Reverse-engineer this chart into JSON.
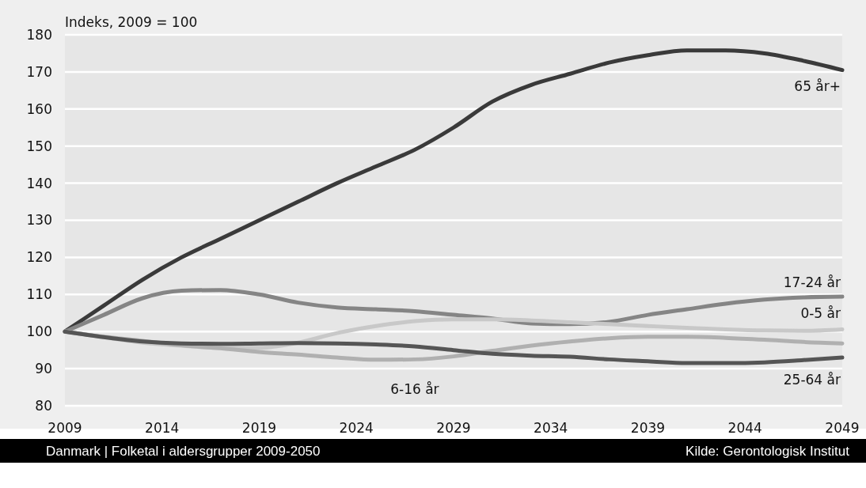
{
  "chart_data": {
    "type": "line",
    "ylabel": "Indeks, 2009 = 100",
    "x": [
      2009,
      2011,
      2013,
      2015,
      2017,
      2019,
      2021,
      2023,
      2025,
      2027,
      2029,
      2031,
      2033,
      2035,
      2037,
      2039,
      2041,
      2043,
      2045,
      2047,
      2049
    ],
    "xlim": [
      2009,
      2049
    ],
    "xticks": [
      2009,
      2014,
      2019,
      2024,
      2029,
      2034,
      2039,
      2044,
      2049
    ],
    "ylim": [
      80,
      180
    ],
    "yticks": [
      80,
      90,
      100,
      110,
      120,
      130,
      140,
      150,
      160,
      170,
      180
    ],
    "grid": "y",
    "legend": false,
    "line_style": "solid",
    "marker": "none",
    "series": [
      {
        "name": "65 år+",
        "color": "#3a3a3a",
        "values": [
          100,
          107,
          114,
          120,
          125,
          130,
          135,
          140,
          144.5,
          149,
          155,
          162,
          166.5,
          169.5,
          172.5,
          174.5,
          175.8,
          175.8,
          175,
          173,
          170.5
        ]
      },
      {
        "name": "17-24 år",
        "color": "#858585",
        "values": [
          100,
          104.5,
          109,
          111,
          111.2,
          110,
          107.8,
          106.5,
          106,
          105.5,
          104.5,
          103.5,
          102.2,
          102,
          102.6,
          104.5,
          106,
          107.5,
          108.6,
          109.2,
          109.4
        ]
      },
      {
        "name": "0-5 år",
        "color": "#c8c8c8",
        "values": [
          100,
          98.5,
          97,
          96.2,
          95.6,
          95.6,
          97,
          99.6,
          101.5,
          102.8,
          103.3,
          103.3,
          103,
          102.5,
          102,
          101.5,
          101,
          100.6,
          100.3,
          100.2,
          100.6
        ]
      },
      {
        "name": "6-16 år",
        "color": "#b0b0b0",
        "values": [
          100,
          98.6,
          97.5,
          96.3,
          95.5,
          94.5,
          93.8,
          93,
          92.4,
          92.5,
          93.3,
          94.8,
          96.2,
          97.3,
          98.2,
          98.6,
          98.6,
          98.3,
          97.8,
          97.2,
          96.8
        ]
      },
      {
        "name": "25-64 år",
        "color": "#555555",
        "values": [
          100,
          98.5,
          97.3,
          96.8,
          96.7,
          96.8,
          96.9,
          96.8,
          96.5,
          96,
          95,
          94,
          93.5,
          93.2,
          92.5,
          92,
          91.5,
          91.5,
          91.7,
          92.3,
          93
        ]
      }
    ],
    "annotations": [
      "Danmark  |  Folketal i aldersgrupper 2009-2050",
      "Kilde: Gerontologisk Institut"
    ]
  }
}
